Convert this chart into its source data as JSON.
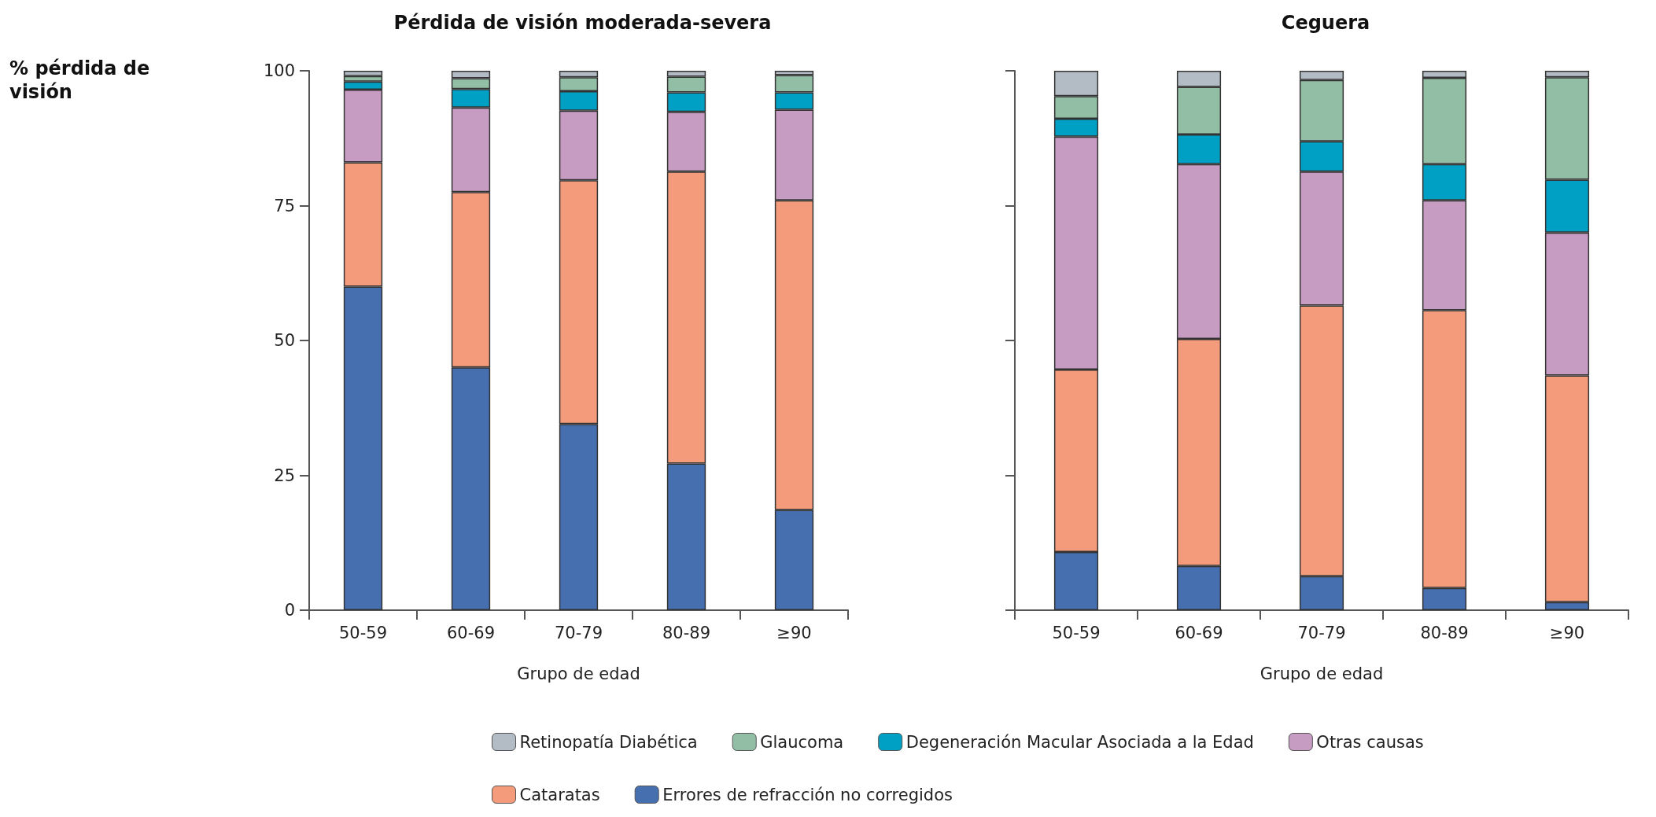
{
  "chart_data": [
    {
      "type": "bar",
      "title": "Pérdida de visión moderada-severa",
      "xlabel": "Grupo de edad",
      "ylabel": "% pérdida de visión",
      "stacked": true,
      "legend": "bottom",
      "grid": false,
      "categories": [
        "50-59",
        "60-69",
        "70-79",
        "80-89",
        "≥90"
      ],
      "ylim": [
        0,
        100
      ],
      "yticks": [
        0,
        25,
        50,
        75,
        100
      ],
      "series": [
        {
          "name": "Errores de refracción no corregidos",
          "color": "#466fb0",
          "values": [
            60,
            45,
            34.5,
            27.2,
            18.6
          ]
        },
        {
          "name": "Cataratas",
          "color": "#f49b7b",
          "values": [
            23,
            32.5,
            45.2,
            54.1,
            57.4
          ]
        },
        {
          "name": "Otras causas",
          "color": "#c69cc2",
          "values": [
            13.5,
            15.7,
            12.9,
            11.1,
            16.8
          ]
        },
        {
          "name": "Degeneración Macular Asociada a la Edad",
          "color": "#00a0c4",
          "values": [
            1.5,
            3.4,
            3.6,
            3.6,
            3.2
          ]
        },
        {
          "name": "Glaucoma",
          "color": "#93bea6",
          "values": [
            1,
            2,
            2.6,
            2.9,
            3.2
          ]
        },
        {
          "name": "Retinopatía Diabética",
          "color": "#b3bcc5",
          "values": [
            1,
            1.4,
            1.2,
            1.1,
            0.8
          ]
        }
      ]
    },
    {
      "type": "bar",
      "title": "Ceguera",
      "xlabel": "Grupo de edad",
      "stacked": true,
      "legend": "bottom",
      "grid": false,
      "tick_labels": "x",
      "categories": [
        "50-59",
        "60-69",
        "70-79",
        "80-89",
        "≥90"
      ],
      "ylim": [
        0,
        100
      ],
      "yticks": [
        0,
        25,
        50,
        75,
        100
      ],
      "series": [
        {
          "name": "Errores de refracción no corregidos",
          "color": "#466fb0",
          "values": [
            10.8,
            8.2,
            6.3,
            4.1,
            1.5
          ]
        },
        {
          "name": "Cataratas",
          "color": "#f49b7b",
          "values": [
            33.8,
            42.1,
            50.2,
            51.5,
            42
          ]
        },
        {
          "name": "Otras causas",
          "color": "#c69cc2",
          "values": [
            43.2,
            32.4,
            24.8,
            20.4,
            26.5
          ]
        },
        {
          "name": "Degeneración Macular Asociada a la Edad",
          "color": "#00a0c4",
          "values": [
            3.3,
            5.5,
            5.6,
            6.7,
            9.8
          ]
        },
        {
          "name": "Glaucoma",
          "color": "#93bea6",
          "values": [
            4.2,
            8.8,
            11.4,
            16,
            19
          ]
        },
        {
          "name": "Retinopatía Diabética",
          "color": "#b3bcc5",
          "values": [
            4.7,
            3,
            1.7,
            1.3,
            1.2
          ]
        }
      ]
    }
  ]
}
